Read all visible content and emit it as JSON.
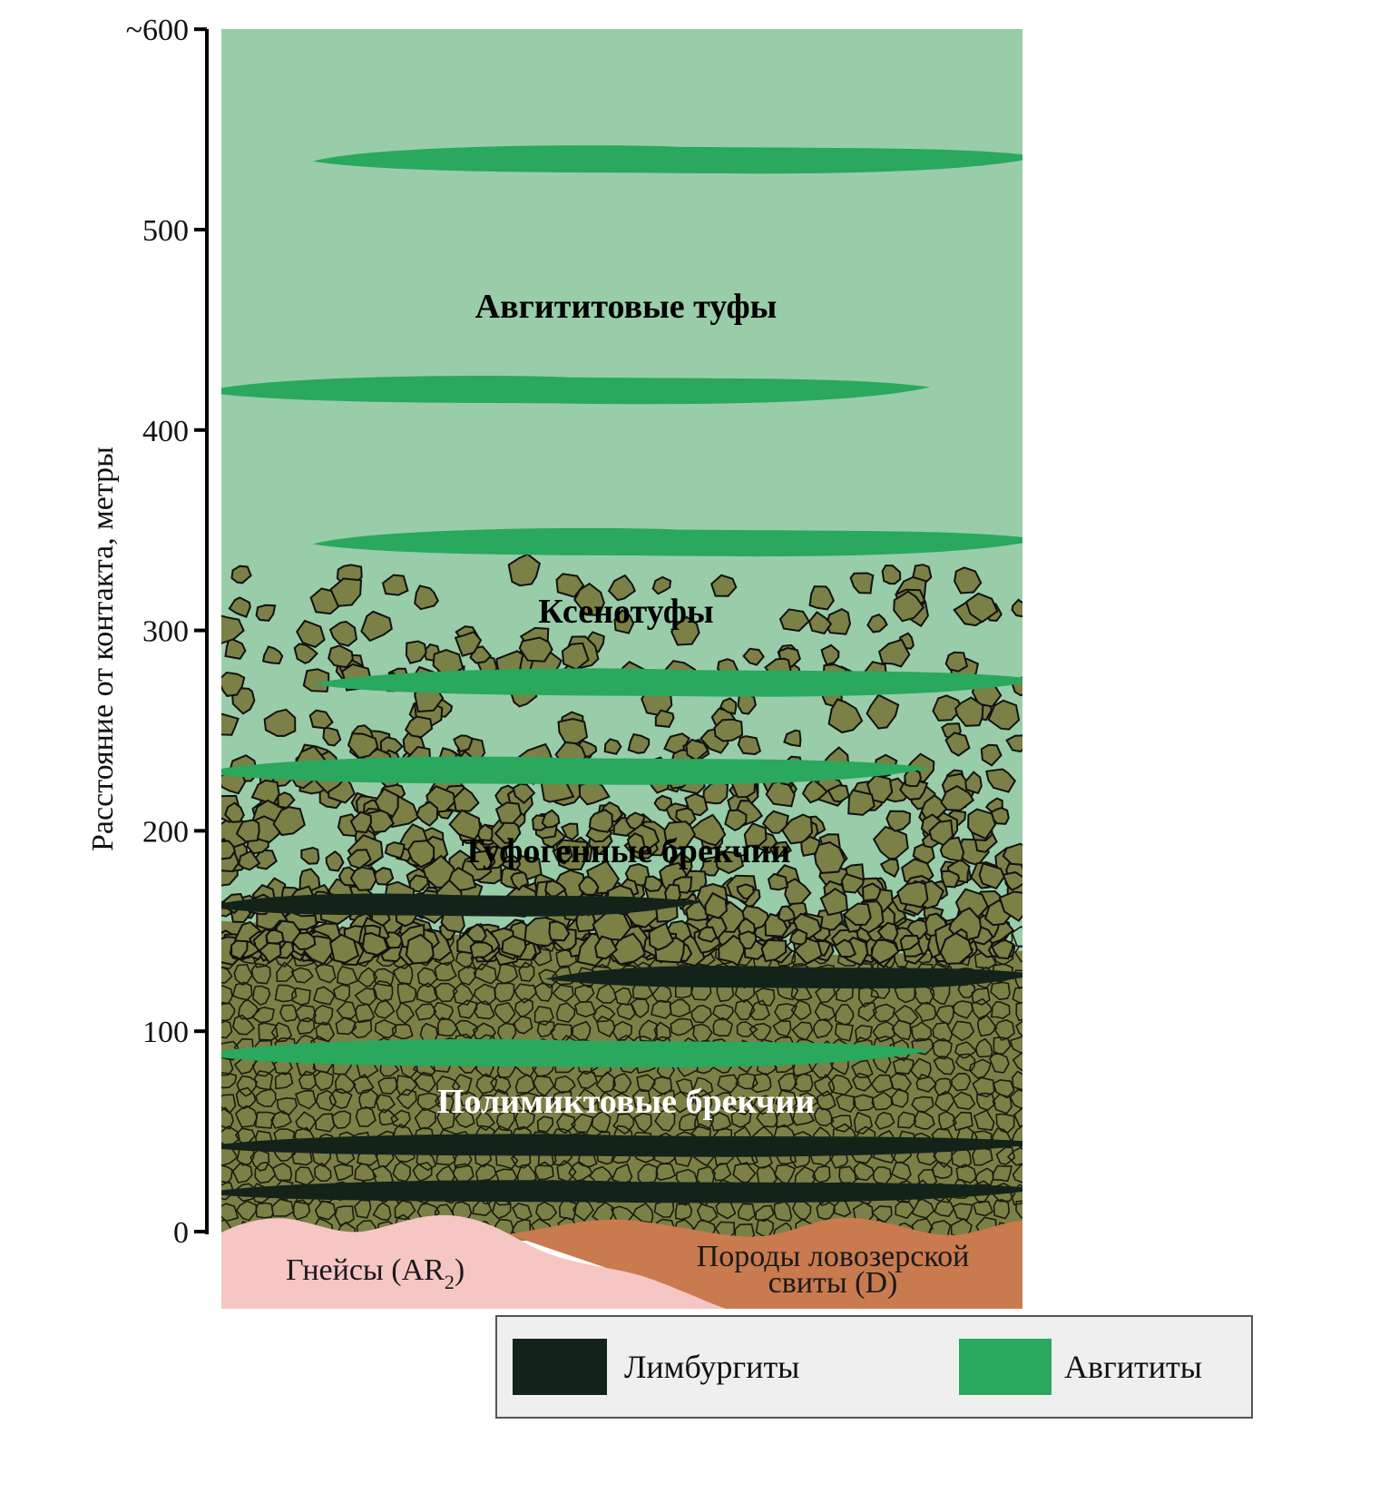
{
  "axis": {
    "label": "Расстояние от контакта, метры",
    "ticks": [
      {
        "value": 600,
        "label": "~600"
      },
      {
        "value": 500,
        "label": "500"
      },
      {
        "value": 400,
        "label": "400"
      },
      {
        "value": 300,
        "label": "300"
      },
      {
        "value": 200,
        "label": "200"
      },
      {
        "value": 100,
        "label": "100"
      },
      {
        "value": 0,
        "label": "0"
      }
    ],
    "range_m": [
      0,
      600
    ]
  },
  "zones": [
    {
      "name": "Авгититовые туфы",
      "label_at_m": 461,
      "color": "#000000"
    },
    {
      "name": "Ксенотуфы",
      "label_at_m": 309,
      "color": "#000000"
    },
    {
      "name": "Туфогенные брекчии",
      "label_at_m": 190,
      "color": "#000000"
    },
    {
      "name": "Полимиктовые брекчии",
      "label_at_m": 65,
      "color": "#ffffff"
    }
  ],
  "basement": {
    "gneiss": "Гнейсы (AR",
    "gneiss_sub": "2",
    "gneiss_close": ")",
    "lovozero_line1": "Породы ловозерской",
    "lovozero_line2": "свиты (D)"
  },
  "colors": {
    "tuff_background": "#99cda9",
    "augitite": "#29a85e",
    "limburgite": "#13231a",
    "clast": "#7b8046",
    "gneiss": "#f5c6c4",
    "lovozero": "#c97a4e",
    "legend_bg": "#efefef"
  },
  "lenses": [
    {
      "type": "augitite",
      "center_m": 535,
      "from": "mid-left",
      "to": "right"
    },
    {
      "type": "augitite",
      "center_m": 420,
      "from": "left",
      "to": "mid-right"
    },
    {
      "type": "augitite",
      "center_m": 344,
      "from": "mid-left",
      "to": "right"
    },
    {
      "type": "augitite",
      "center_m": 274,
      "from": "mid-left",
      "to": "right"
    },
    {
      "type": "augitite",
      "center_m": 230,
      "from": "left",
      "to": "mid-right"
    },
    {
      "type": "augitite",
      "center_m": 89,
      "from": "left",
      "to": "mid-right"
    },
    {
      "type": "limburgite",
      "center_m": 163,
      "from": "left",
      "to": "middle"
    },
    {
      "type": "limburgite",
      "center_m": 127,
      "from": "middle",
      "to": "right"
    },
    {
      "type": "limburgite",
      "center_m": 43,
      "from": "left",
      "to": "right"
    },
    {
      "type": "limburgite",
      "center_m": 20,
      "from": "left",
      "to": "right"
    }
  ],
  "legend": {
    "items": [
      {
        "label": "Лимбургиты",
        "color": "#13231a"
      },
      {
        "label": "Авгититы",
        "color": "#29a85e"
      }
    ]
  }
}
